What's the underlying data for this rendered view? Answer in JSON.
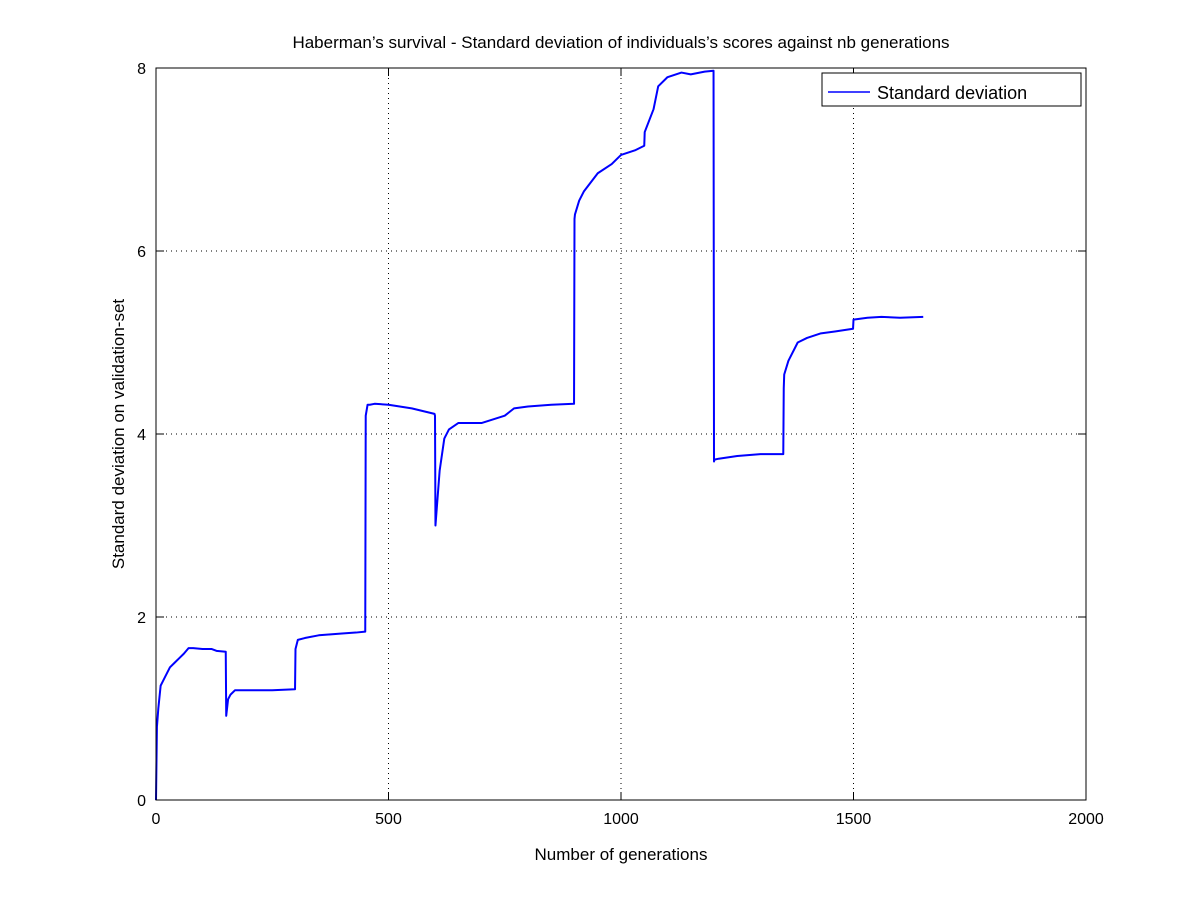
{
  "chart_data": {
    "type": "line",
    "title": "Haberman’s survival - Standard deviation of individuals’s scores against nb generations",
    "xlabel": "Number of generations",
    "ylabel": "Standard deviation on validation-set",
    "xlim": [
      0,
      2000
    ],
    "ylim": [
      0,
      8
    ],
    "xticks": [
      "0",
      "500",
      "1000",
      "1500",
      "2000"
    ],
    "yticks": [
      "0",
      "2",
      "4",
      "6",
      "8"
    ],
    "grid": true,
    "legend_position": "top-right",
    "series_color": "#0000ff",
    "series": [
      {
        "name": "Standard deviation",
        "x": [
          0,
          2,
          5,
          10,
          15,
          20,
          30,
          40,
          50,
          60,
          70,
          80,
          100,
          120,
          130,
          150,
          151,
          155,
          160,
          170,
          200,
          250,
          299,
          300,
          305,
          320,
          350,
          400,
          430,
          450,
          451,
          455,
          460,
          470,
          500,
          550,
          599,
          600,
          601,
          610,
          620,
          630,
          650,
          700,
          750,
          770,
          800,
          850,
          899,
          900,
          901,
          910,
          920,
          950,
          980,
          1000,
          1030,
          1050,
          1051,
          1070,
          1080,
          1100,
          1130,
          1150,
          1180,
          1199,
          1200,
          1201,
          1210,
          1250,
          1300,
          1349,
          1350,
          1351,
          1360,
          1380,
          1400,
          1430,
          1460,
          1499,
          1500,
          1530,
          1560,
          1600,
          1650
        ],
        "y": [
          0.0,
          0.8,
          1.0,
          1.25,
          1.3,
          1.35,
          1.45,
          1.5,
          1.55,
          1.6,
          1.66,
          1.66,
          1.65,
          1.65,
          1.63,
          1.62,
          0.92,
          1.1,
          1.15,
          1.2,
          1.2,
          1.2,
          1.21,
          1.65,
          1.75,
          1.77,
          1.8,
          1.82,
          1.83,
          1.84,
          4.2,
          4.32,
          4.32,
          4.33,
          4.32,
          4.28,
          4.22,
          4.2,
          3.0,
          3.6,
          3.95,
          4.05,
          4.12,
          4.12,
          4.2,
          4.28,
          4.3,
          4.32,
          4.33,
          6.35,
          6.4,
          6.55,
          6.65,
          6.85,
          6.95,
          7.05,
          7.1,
          7.15,
          7.3,
          7.55,
          7.8,
          7.9,
          7.95,
          7.93,
          7.96,
          7.97,
          3.7,
          3.72,
          3.73,
          3.76,
          3.78,
          3.78,
          4.5,
          4.65,
          4.8,
          5.0,
          5.05,
          5.1,
          5.12,
          5.15,
          5.25,
          5.27,
          5.28,
          5.27,
          5.28
        ]
      }
    ]
  }
}
